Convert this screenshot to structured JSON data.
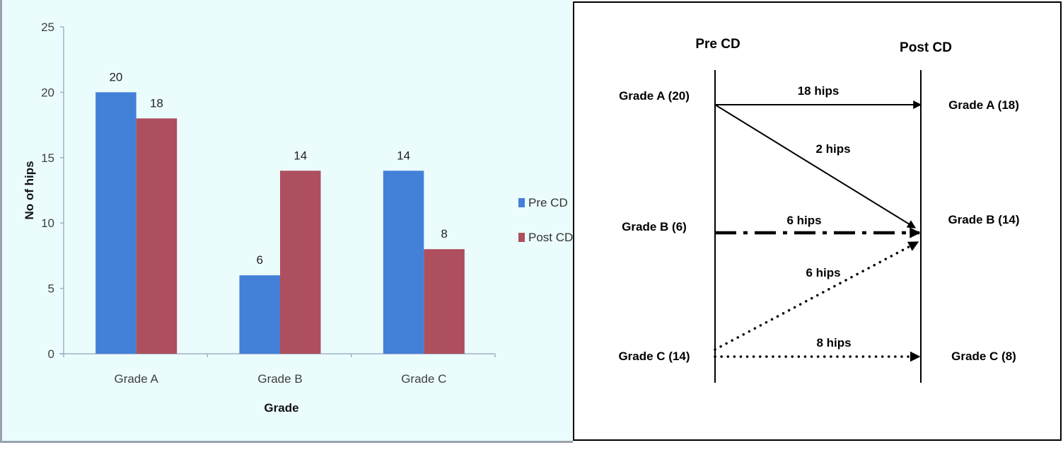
{
  "chart_data": {
    "type": "bar",
    "title": "",
    "xlabel": "Grade",
    "ylabel": "No of hips",
    "ylim": [
      0,
      25
    ],
    "yticks": [
      0,
      5,
      10,
      15,
      20,
      25
    ],
    "grid": false,
    "legend_position": "right",
    "categories": [
      "Grade A",
      "Grade B",
      "Grade C"
    ],
    "series": [
      {
        "name": "Pre CD",
        "color": "#4380D8",
        "values": [
          20,
          6,
          14
        ]
      },
      {
        "name": "Post CD",
        "color": "#AD4F5E",
        "values": [
          18,
          14,
          8
        ]
      }
    ]
  },
  "diagram": {
    "headers": {
      "pre": "Pre CD",
      "post": "Post CD"
    },
    "pre_nodes": [
      {
        "label": "Grade A (20)"
      },
      {
        "label": "Grade B (6)"
      },
      {
        "label": "Grade C (14)"
      }
    ],
    "post_nodes": [
      {
        "label": "Grade A (18)"
      },
      {
        "label": "Grade B (14)"
      },
      {
        "label": "Grade C (8)"
      }
    ],
    "flows": [
      {
        "from": "Grade A",
        "to": "Grade A",
        "label": "18 hips",
        "style": "solid"
      },
      {
        "from": "Grade A",
        "to": "Grade B",
        "label": "2 hips",
        "style": "solid"
      },
      {
        "from": "Grade B",
        "to": "Grade B",
        "label": "6 hips",
        "style": "dash-dot"
      },
      {
        "from": "Grade C",
        "to": "Grade B",
        "label": "6 hips",
        "style": "dotted"
      },
      {
        "from": "Grade C",
        "to": "Grade C",
        "label": "8 hips",
        "style": "dotted"
      }
    ]
  }
}
